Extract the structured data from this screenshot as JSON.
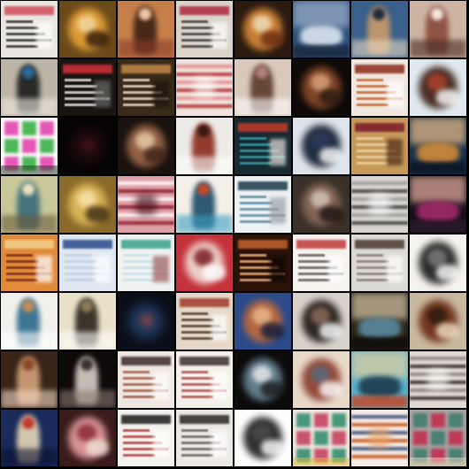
{
  "image": {
    "kind": "generated-sample-grid",
    "rows": 8,
    "cols": 8,
    "background": "#000000"
  },
  "tiles": [
    {
      "bg": "#e9e6e0",
      "c1": "#d24a5a",
      "c2": "#2b2b2b",
      "c3": "#ffffff",
      "style": "doc"
    },
    {
      "bg": "#6b4a1a",
      "c1": "#e8a23a",
      "c2": "#f3d9a0",
      "c3": "#2a1608",
      "style": "blob"
    },
    {
      "bg": "#c67f4a",
      "c1": "#3a1f12",
      "c2": "#f0c7a3",
      "c3": "#8a3c2a",
      "style": "figure"
    },
    {
      "bg": "#d9d3c9",
      "c1": "#b02842",
      "c2": "#3b3b3b",
      "c3": "#ffffff",
      "style": "doc"
    },
    {
      "bg": "#2a1a10",
      "c1": "#d98a3a",
      "c2": "#f2ddb8",
      "c3": "#6b2a12",
      "style": "blob"
    },
    {
      "bg": "#2c4e7a",
      "c1": "#dde6f0",
      "c2": "#a0b4cc",
      "c3": "#1a2a40",
      "style": "sky"
    },
    {
      "bg": "#3a5f8a",
      "c1": "#c89a6a",
      "c2": "#1c2b3c",
      "c3": "#e9d9c2",
      "style": "figure"
    },
    {
      "bg": "#cdb4a3",
      "c1": "#8a4a3a",
      "c2": "#f0e4da",
      "c3": "#4a2a22",
      "style": "figure"
    },
    {
      "bg": "#bdb6a8",
      "c1": "#1a1a1a",
      "c2": "#2c6a9a",
      "c3": "#efe9df",
      "style": "figure"
    },
    {
      "bg": "#1a1410",
      "c1": "#d2323a",
      "c2": "#eaeaea",
      "c3": "#6b6b6b",
      "style": "doc"
    },
    {
      "bg": "#3a2a18",
      "c1": "#c48a4a",
      "c2": "#efe0c9",
      "c3": "#1a120c",
      "style": "doc"
    },
    {
      "bg": "#f2e2de",
      "c1": "#b02a2a",
      "c2": "#e08a8a",
      "c3": "#ffffff",
      "style": "stripe"
    },
    {
      "bg": "#d9c8bb",
      "c1": "#5a3a2a",
      "c2": "#b0807a",
      "c3": "#ffffff",
      "style": "figure"
    },
    {
      "bg": "#0e0a08",
      "c1": "#8a4a2a",
      "c2": "#d9a27a",
      "c3": "#2a1a12",
      "style": "blob"
    },
    {
      "bg": "#f0e8df",
      "c1": "#8a2a1a",
      "c2": "#c4612a",
      "c3": "#ffffff",
      "style": "doc"
    },
    {
      "bg": "#dfe9ef",
      "c1": "#3a1a0e",
      "c2": "#b0422a",
      "c3": "#ffffff",
      "style": "blob"
    },
    {
      "bg": "#ffffff",
      "c1": "#2faa3a",
      "c2": "#e03aa8",
      "c3": "#1a3a1a",
      "style": "pattern"
    },
    {
      "bg": "#050304",
      "c1": "#2a0e12",
      "c2": "#5a1a20",
      "c3": "#0a0608",
      "style": "dark"
    },
    {
      "bg": "#1a120e",
      "c1": "#a06a4a",
      "c2": "#e8c8a8",
      "c3": "#3a2218",
      "style": "blob"
    },
    {
      "bg": "#ecebe8",
      "c1": "#8a2a1a",
      "c2": "#3a1a12",
      "c3": "#ffffff",
      "style": "figure"
    },
    {
      "bg": "#182a32",
      "c1": "#c23a2a",
      "c2": "#3aa0b0",
      "c3": "#e8e2da",
      "style": "doc"
    },
    {
      "bg": "#dfe3ea",
      "c1": "#0e1a2e",
      "c2": "#2a3a5a",
      "c3": "#ffffff",
      "style": "blob"
    },
    {
      "bg": "#c89a5a",
      "c1": "#7a1a2a",
      "c2": "#e8d2a8",
      "c3": "#4a2a12",
      "style": "doc"
    },
    {
      "bg": "#16304a",
      "c1": "#d28a3a",
      "c2": "#f0c08a",
      "c3": "#0a1624",
      "style": "sky"
    },
    {
      "bg": "#c8c89a",
      "c1": "#3a6a7a",
      "c2": "#e8e0c0",
      "c3": "#6a5a3a",
      "style": "figure"
    },
    {
      "bg": "#8a6a2a",
      "c1": "#e0b85a",
      "c2": "#f6e2a8",
      "c3": "#3a2a10",
      "style": "blob"
    },
    {
      "bg": "#e0a0a8",
      "c1": "#8a1a2a",
      "c2": "#ffffff",
      "c3": "#3a0a12",
      "style": "stripe"
    },
    {
      "bg": "#f4efe9",
      "c1": "#1a4a6a",
      "c2": "#c24a2a",
      "c3": "#3aa0c0",
      "style": "figure"
    },
    {
      "bg": "#eef1f2",
      "c1": "#1a3a4a",
      "c2": "#5a8aa0",
      "c3": "#9aa0a6",
      "style": "doc"
    },
    {
      "bg": "#3a3028",
      "c1": "#8a6a5a",
      "c2": "#d4c4b8",
      "c3": "#1a120e",
      "style": "blob"
    },
    {
      "bg": "#d8d4d0",
      "c1": "#3a3a3a",
      "c2": "#9a9a9a",
      "c3": "#ffffff",
      "style": "stripe"
    },
    {
      "bg": "#160e16",
      "c1": "#a02a6a",
      "c2": "#e8b0a0",
      "c3": "#2a1a2a",
      "style": "sky"
    },
    {
      "bg": "#e08a3a",
      "c1": "#f2d28a",
      "c2": "#7a2a1a",
      "c3": "#ffffff",
      "style": "doc"
    },
    {
      "bg": "#dfe8f2",
      "c1": "#2a4a8a",
      "c2": "#c0d0e0",
      "c3": "#ffffff",
      "style": "doc"
    },
    {
      "bg": "#f0f2f2",
      "c1": "#3aa08a",
      "c2": "#c8e0e8",
      "c3": "#9a5a5a",
      "style": "doc"
    },
    {
      "bg": "#c4323a",
      "c1": "#f2e0d8",
      "c2": "#7a1a20",
      "c3": "#ffffff",
      "style": "blob"
    },
    {
      "bg": "#2a1208",
      "c1": "#c2622a",
      "c2": "#f0b07a",
      "c3": "#0e0604",
      "style": "doc"
    },
    {
      "bg": "#f6f2ee",
      "c1": "#c03a3a",
      "c2": "#5a5a5a",
      "c3": "#ffffff",
      "style": "doc"
    },
    {
      "bg": "#dcdad6",
      "c1": "#4a3a30",
      "c2": "#8a7a70",
      "c3": "#ffffff",
      "style": "doc"
    },
    {
      "bg": "#f4f2ee",
      "c1": "#1a1a1a",
      "c2": "#7a7a7a",
      "c3": "#ffffff",
      "style": "blob"
    },
    {
      "bg": "#f2f0ec",
      "c1": "#2a6a8a",
      "c2": "#c08a5a",
      "c3": "#ffffff",
      "style": "figure"
    },
    {
      "bg": "#e8e0c8",
      "c1": "#2a2218",
      "c2": "#8a7a5a",
      "c3": "#ffffff",
      "style": "figure"
    },
    {
      "bg": "#0a0e18",
      "c1": "#2a4a7a",
      "c2": "#c04a3a",
      "c3": "#0a0a0a",
      "style": "dark"
    },
    {
      "bg": "#e6d8c8",
      "c1": "#a03a2a",
      "c2": "#4a3a2a",
      "c3": "#ffffff",
      "style": "doc"
    },
    {
      "bg": "#2a4a8a",
      "c1": "#c26a3a",
      "c2": "#e8b88a",
      "c3": "#0e1a3a",
      "style": "blob"
    },
    {
      "bg": "#d8d2ca",
      "c1": "#1a1410",
      "c2": "#8a6a5a",
      "c3": "#ffffff",
      "style": "blob"
    },
    {
      "bg": "#2a2418",
      "c1": "#5a8aa0",
      "c2": "#d8c8a8",
      "c3": "#0e0c08",
      "style": "sky"
    },
    {
      "bg": "#c8b8a0",
      "c1": "#6a2a12",
      "c2": "#2a1a0e",
      "c3": "#f0e0c8",
      "style": "blob"
    },
    {
      "bg": "#3a2418",
      "c1": "#d2a27a",
      "c2": "#8a4a2a",
      "c3": "#f0d8c0",
      "style": "figure"
    },
    {
      "bg": "#0e0a0a",
      "c1": "#d8d0c8",
      "c2": "#3a3030",
      "c3": "#8a7a70",
      "style": "figure"
    },
    {
      "bg": "#efe8e0",
      "c1": "#3a2a2a",
      "c2": "#a05a4a",
      "c3": "#ffffff",
      "style": "doc"
    },
    {
      "bg": "#f4f0ea",
      "c1": "#3a3030",
      "c2": "#b04a4a",
      "c3": "#ffffff",
      "style": "doc"
    },
    {
      "bg": "#0c0a0a",
      "c1": "#6a8a9a",
      "c2": "#e8e8e8",
      "c3": "#1a1a1a",
      "style": "blob"
    },
    {
      "bg": "#e8d8c8",
      "c1": "#8a3a2a",
      "c2": "#5a6a7a",
      "c3": "#ffffff",
      "style": "blob"
    },
    {
      "bg": "#5ab0c8",
      "c1": "#1a3a4a",
      "c2": "#e8d0a0",
      "c3": "#c04a2a",
      "style": "sky"
    },
    {
      "bg": "#e0dad2",
      "c1": "#2a2420",
      "c2": "#8a8078",
      "c3": "#ffffff",
      "style": "stripe"
    },
    {
      "bg": "#1a2a5a",
      "c1": "#e8d8b8",
      "c2": "#c23a2a",
      "c3": "#0a1030",
      "style": "figure"
    },
    {
      "bg": "#3a1a1a",
      "c1": "#e8a0a0",
      "c2": "#8a2a3a",
      "c3": "#f0e0d8",
      "style": "blob"
    },
    {
      "bg": "#f4f2ee",
      "c1": "#1a1a1a",
      "c2": "#b03a3a",
      "c3": "#ffffff",
      "style": "doc"
    },
    {
      "bg": "#ece8e4",
      "c1": "#2a2420",
      "c2": "#6a6058",
      "c3": "#ffffff",
      "style": "doc"
    },
    {
      "bg": "#ffffff",
      "c1": "#1a1a1a",
      "c2": "#4a4a4a",
      "c3": "#ffffff",
      "style": "blob"
    },
    {
      "bg": "#f0e8e0",
      "c1": "#c23a5a",
      "c2": "#2a8a6a",
      "c3": "#e8c03a",
      "style": "pattern"
    },
    {
      "bg": "#f4ece4",
      "c1": "#c8501a",
      "c2": "#3a4a7a",
      "c3": "#e8a05a",
      "style": "stripe"
    },
    {
      "bg": "#a8a0a0",
      "c1": "#c02a4a",
      "c2": "#3a7a6a",
      "c3": "#f0e0c0",
      "style": "pattern"
    }
  ]
}
